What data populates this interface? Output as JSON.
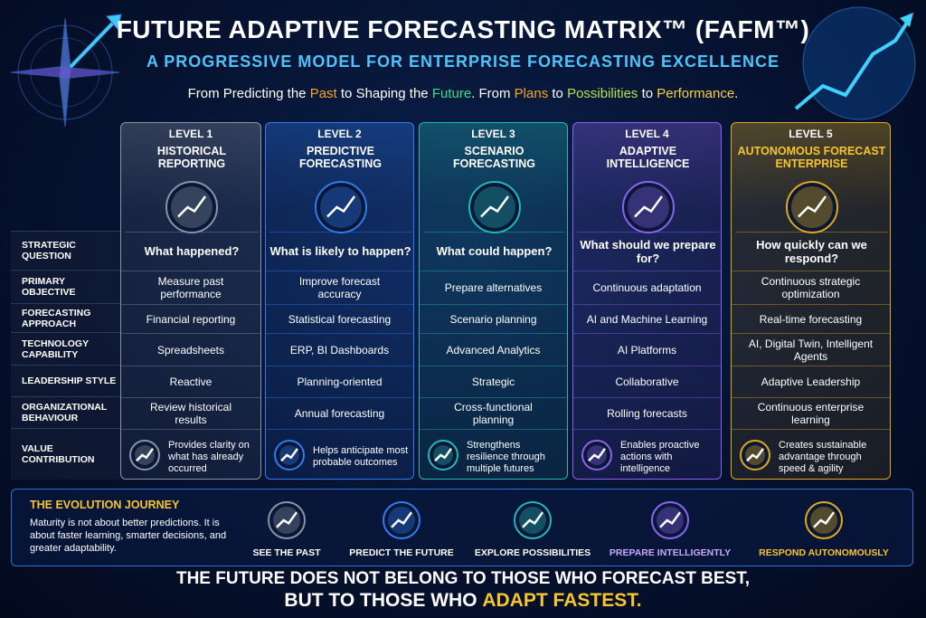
{
  "header": {
    "title": "FUTURE ADAPTIVE FORECASTING MATRIX™ (FAFM™)",
    "subtitle": "A PROGRESSIVE MODEL FOR ENTERPRISE FORECASTING EXCELLENCE",
    "tagline": [
      {
        "text": "From Predicting the ",
        "color": "#ffffff"
      },
      {
        "text": "Past",
        "color": "#f5a623"
      },
      {
        "text": " to Shaping the ",
        "color": "#ffffff"
      },
      {
        "text": "Future",
        "color": "#3ddc84"
      },
      {
        "text": ". From ",
        "color": "#ffffff"
      },
      {
        "text": "Plans",
        "color": "#f5a623"
      },
      {
        "text": " to ",
        "color": "#ffffff"
      },
      {
        "text": "Possibilities",
        "color": "#b5e04a"
      },
      {
        "text": " to ",
        "color": "#ffffff"
      },
      {
        "text": "Performance",
        "color": "#f7d23e"
      },
      {
        "text": ".",
        "color": "#ffffff"
      }
    ]
  },
  "row_labels": [
    "STRATEGIC QUESTION",
    "PRIMARY OBJECTIVE",
    "FORECASTING APPROACH",
    "TECHNOLOGY CAPABILITY",
    "LEADERSHIP STYLE",
    "ORGANIZATIONAL BEHAVIOUR",
    "VALUE CONTRIBUTION"
  ],
  "levels": [
    {
      "level": "LEVEL 1",
      "name": "HISTORICAL REPORTING",
      "color": "#8a94a6",
      "question": "What happened?",
      "cells": [
        "Measure past performance",
        "Financial reporting",
        "Spreadsheets",
        "Reactive",
        "Review historical results"
      ],
      "value": "Provides clarity on what has already occurred"
    },
    {
      "level": "LEVEL 2",
      "name": "PREDICTIVE FORECASTING",
      "color": "#2f7bf0",
      "question": "What is likely to happen?",
      "cells": [
        "Improve forecast accuracy",
        "Statistical forecasting",
        "ERP, BI Dashboards",
        "Planning-oriented",
        "Annual forecasting"
      ],
      "value": "Helps anticipate most probable outcomes"
    },
    {
      "level": "LEVEL 3",
      "name": "SCENARIO FORECASTING",
      "color": "#22b8b8",
      "question": "What could happen?",
      "cells": [
        "Prepare alternatives",
        "Scenario planning",
        "Advanced Analytics",
        "Strategic",
        "Cross-functional planning"
      ],
      "value": "Strengthens resilience through multiple futures"
    },
    {
      "level": "LEVEL 4",
      "name": "ADAPTIVE INTELLIGENCE",
      "color": "#8a63f0",
      "question": "What should we prepare for?",
      "cells": [
        "Continuous adaptation",
        "AI and Machine Learning",
        "AI Platforms",
        "Collaborative",
        "Rolling forecasts"
      ],
      "value": "Enables proactive actions with intelligence"
    },
    {
      "level": "LEVEL 5",
      "name": "AUTONOMOUS FORECAST ENTERPRISE",
      "color": "#e0aa1c",
      "question": "How quickly can we respond?",
      "cells": [
        "Continuous strategic optimization",
        "Real-time forecasting",
        "AI, Digital Twin, Intelligent Agents",
        "Adaptive Leadership",
        "Continuous enterprise learning"
      ],
      "value": "Creates sustainable advantage through speed & agility"
    }
  ],
  "journey": {
    "title": "THE EVOLUTION JOURNEY",
    "text": "Maturity is not about better predictions. It is about faster learning, smarter decisions, and greater adaptability.",
    "steps": [
      "SEE THE PAST",
      "PREDICT THE FUTURE",
      "EXPLORE POSSIBILITIES",
      "PREPARE INTELLIGENTLY",
      "RESPOND AUTONOMOUSLY"
    ]
  },
  "footer": {
    "line1": "THE FUTURE DOES NOT BELONG TO THOSE WHO FORECAST BEST,",
    "line2": [
      {
        "text": "BUT TO THOSE WHO ",
        "color": "#ffffff"
      },
      {
        "text": "ADAPT FASTEST.",
        "color": "#f7c52e"
      }
    ]
  }
}
